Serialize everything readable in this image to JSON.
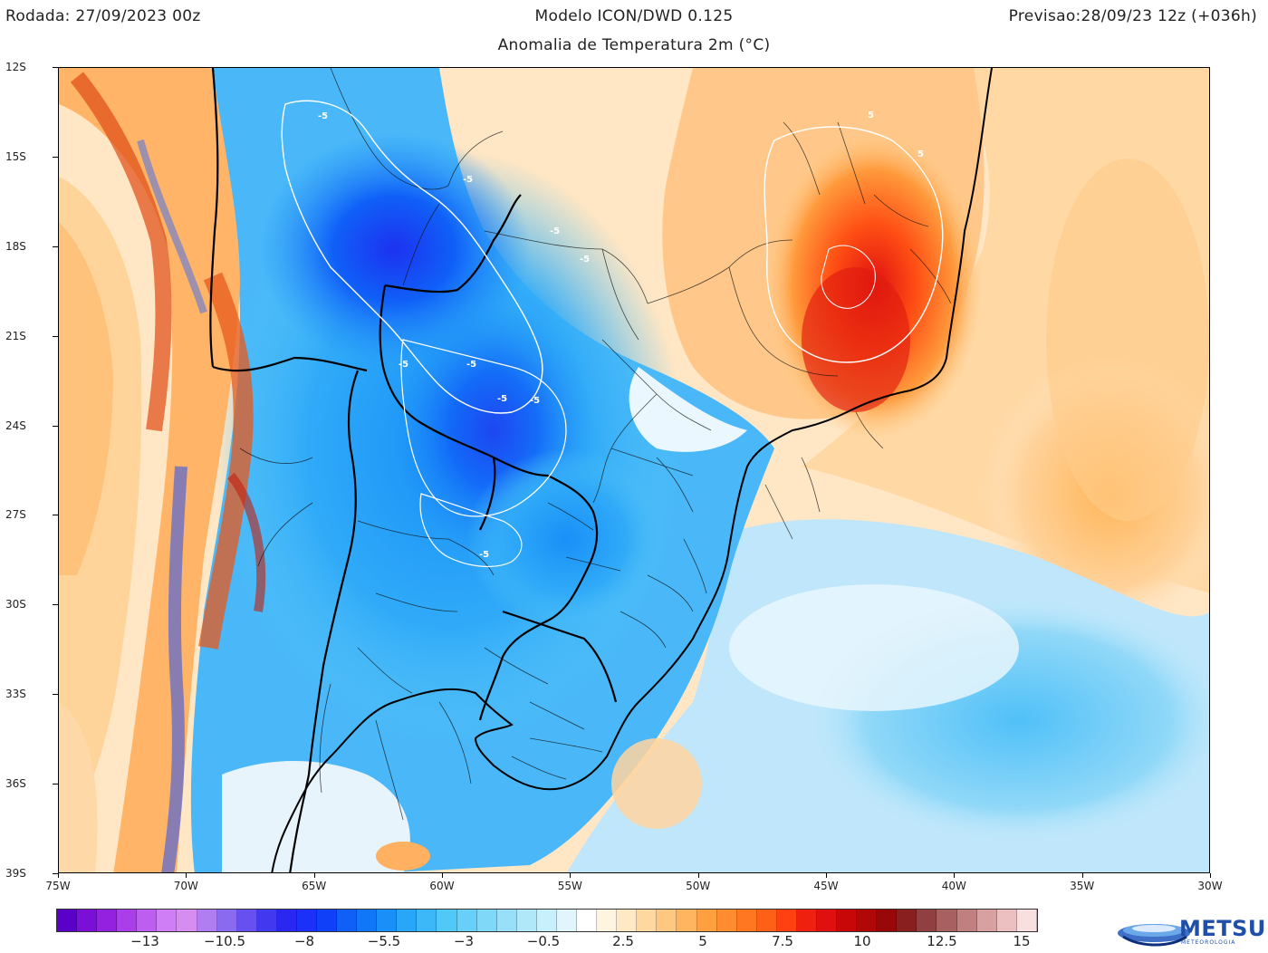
{
  "header": {
    "run": "Rodada: 27/09/2023 00z",
    "model": "Modelo ICON/DWD 0.125",
    "forecast": "Previsao:28/09/23 12z (+036h)",
    "subtitle": "Anomalia de Temperatura 2m (°C)"
  },
  "axes": {
    "lat_labels": [
      "12S",
      "15S",
      "18S",
      "21S",
      "24S",
      "27S",
      "30S",
      "33S",
      "36S",
      "39S"
    ],
    "lon_labels": [
      "75W",
      "70W",
      "65W",
      "60W",
      "55W",
      "50W",
      "45W",
      "40W",
      "35W",
      "30W"
    ]
  },
  "contour_labels": [
    "-5",
    "-5",
    "-5",
    "-5",
    "-5",
    "-5",
    "-5",
    "-5",
    "-5",
    "5",
    "5"
  ],
  "colorbar": {
    "tick_labels": [
      "−13",
      "−10.5",
      "−8",
      "−5.5",
      "−3",
      "−0.5",
      "2.5",
      "5",
      "7.5",
      "10",
      "12.5",
      "15"
    ],
    "colors": [
      "#5a00c8",
      "#7a10d8",
      "#9420e0",
      "#aa3ee8",
      "#bd5ef0",
      "#cf7ef5",
      "#d58ef0",
      "#b07ef0",
      "#8a6af0",
      "#6650f0",
      "#4238f0",
      "#2a28f0",
      "#1c30f8",
      "#1040f8",
      "#1060f8",
      "#1078f8",
      "#1890f8",
      "#28a6f8",
      "#3cb8f8",
      "#50c8f8",
      "#68d0f8",
      "#80d8f8",
      "#98e0f8",
      "#b0e8fa",
      "#c8f0fc",
      "#e0f6fc",
      "#ffffff",
      "#fff4e0",
      "#ffe8c4",
      "#ffd8a0",
      "#ffc880",
      "#ffb460",
      "#ffa040",
      "#ff8c30",
      "#ff7820",
      "#ff6018",
      "#ff4010",
      "#f02010",
      "#e01010",
      "#c80808",
      "#b00808",
      "#980808",
      "#882020",
      "#904040",
      "#a86060",
      "#c08080",
      "#d8a0a0",
      "#ecc0c0",
      "#f8e0e0"
    ]
  },
  "logo": {
    "brand": "METSUL",
    "sub": "METEOROLOGIA"
  }
}
